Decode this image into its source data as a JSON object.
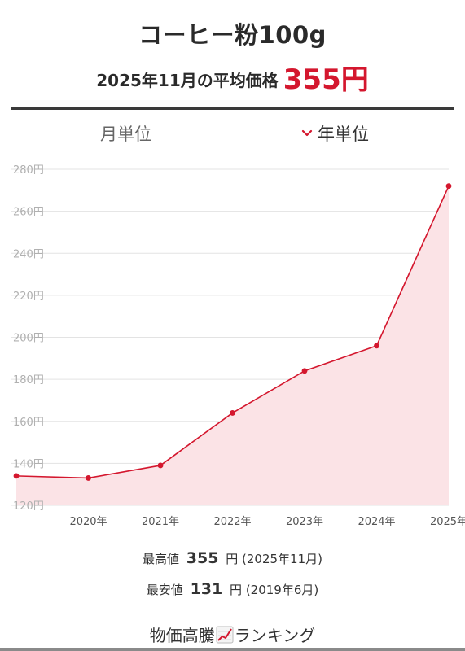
{
  "header": {
    "title": "コーヒー粉100g",
    "subtitle_prefix": "2025年11月の平均価格",
    "price": "355円"
  },
  "tabs": {
    "month": "月単位",
    "year": "年単位",
    "year_icon": "chevron-down-icon",
    "active": "year"
  },
  "chart_data": {
    "type": "area",
    "x": [
      "2019",
      "2020",
      "2021",
      "2022",
      "2023",
      "2024",
      "2025"
    ],
    "values": [
      134,
      133,
      139,
      164,
      184,
      196,
      272
    ],
    "xtick_labels": [
      "2020年",
      "2021年",
      "2022年",
      "2023年",
      "2024年",
      "2025年"
    ],
    "ytick_labels": [
      "120円",
      "140円",
      "160円",
      "180円",
      "200円",
      "220円",
      "240円",
      "260円",
      "280円"
    ],
    "ylim": [
      120,
      280
    ],
    "grid": true,
    "colors": {
      "line": "#d4172e",
      "fill": "#fbe3e6",
      "grid": "#e3e3e3"
    }
  },
  "stats": {
    "max_label": "最高値",
    "max_value": "355",
    "max_unit": "円",
    "max_date": "(2025年11月)",
    "min_label": "最安値",
    "min_value": "131",
    "min_unit": "円",
    "min_date": "(2019年6月)"
  },
  "ranking": {
    "text_before": "物価高騰",
    "icon": "chart-up-icon",
    "text_after": "ランキング"
  }
}
